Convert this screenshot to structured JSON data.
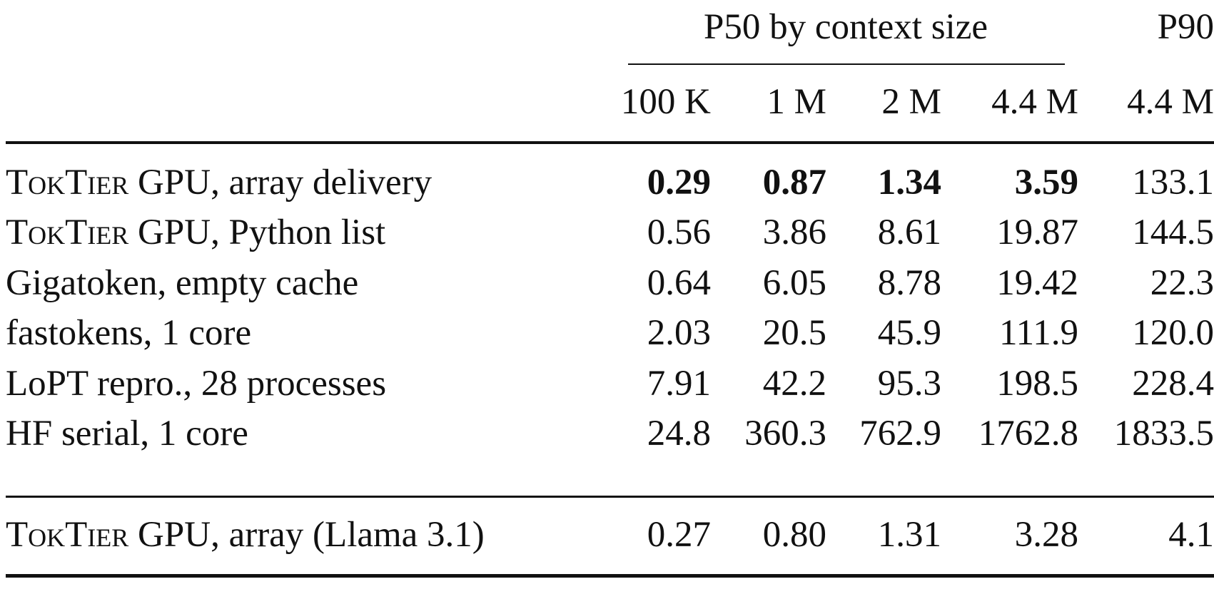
{
  "table": {
    "group_headers": {
      "p50": "P50 by context size",
      "p90": "P90"
    },
    "columns": [
      "100 K",
      "1 M",
      "2 M",
      "4.4 M",
      "4.4 M"
    ],
    "rows": [
      {
        "label_sc": "TokTier",
        "label_rest": " GPU, array delivery",
        "values": [
          "0.29",
          "0.87",
          "1.34",
          "3.59",
          "133.1"
        ],
        "bold": [
          true,
          true,
          true,
          true,
          false
        ]
      },
      {
        "label_sc": "TokTier",
        "label_rest": " GPU, Python list",
        "values": [
          "0.56",
          "3.86",
          "8.61",
          "19.87",
          "144.5"
        ],
        "bold": [
          false,
          false,
          false,
          false,
          false
        ]
      },
      {
        "label_sc": "",
        "label_rest": "Gigatoken, empty cache",
        "values": [
          "0.64",
          "6.05",
          "8.78",
          "19.42",
          "22.3"
        ],
        "bold": [
          false,
          false,
          false,
          false,
          false
        ]
      },
      {
        "label_sc": "",
        "label_rest": "fastokens, 1 core",
        "values": [
          "2.03",
          "20.5",
          "45.9",
          "111.9",
          "120.0"
        ],
        "bold": [
          false,
          false,
          false,
          false,
          false
        ]
      },
      {
        "label_sc": "",
        "label_rest": "LoPT repro., 28 processes",
        "values": [
          "7.91",
          "42.2",
          "95.3",
          "198.5",
          "228.4"
        ],
        "bold": [
          false,
          false,
          false,
          false,
          false
        ]
      },
      {
        "label_sc": "",
        "label_rest": "HF serial, 1 core",
        "values": [
          "24.8",
          "360.3",
          "762.9",
          "1762.8",
          "1833.5"
        ],
        "bold": [
          false,
          false,
          false,
          false,
          false
        ]
      }
    ],
    "footer_row": {
      "label_sc": "TokTier",
      "label_rest": " GPU, array (Llama 3.1)",
      "values": [
        "0.27",
        "0.80",
        "1.31",
        "3.28",
        "4.1"
      ],
      "bold": [
        false,
        false,
        false,
        false,
        false
      ]
    }
  }
}
